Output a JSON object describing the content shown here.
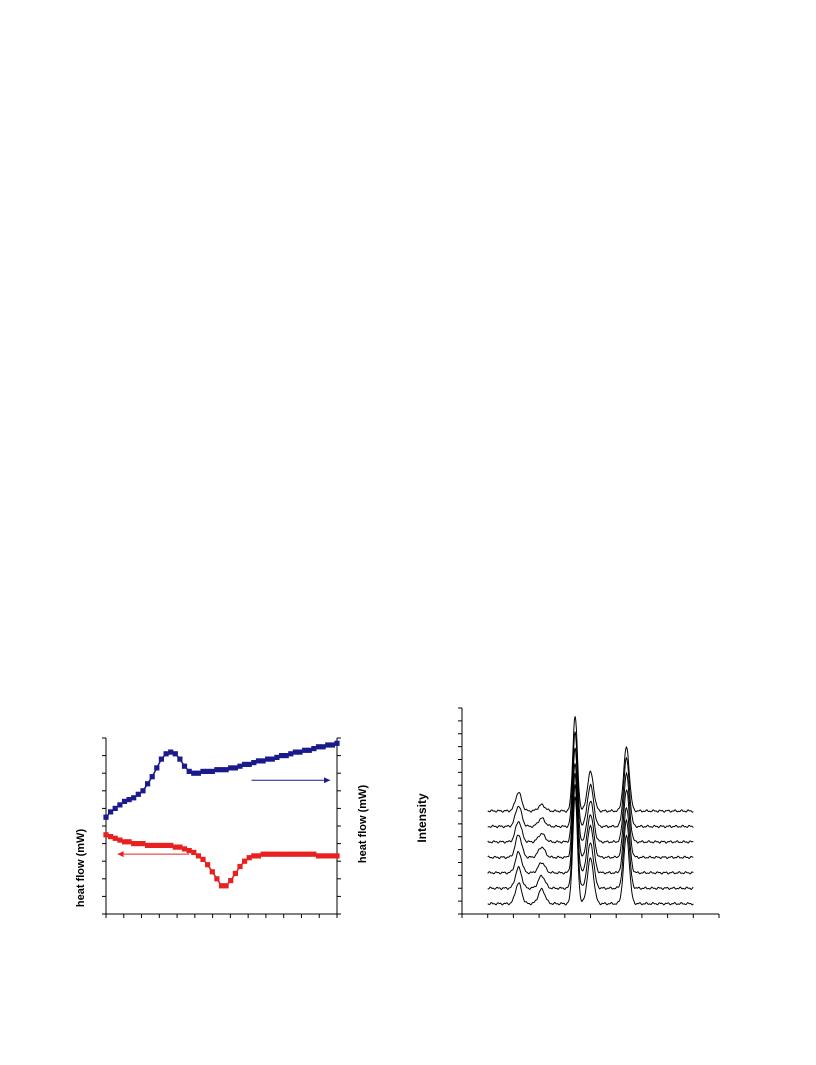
{
  "chart_data": [
    {
      "type": "scatter",
      "title": "",
      "xlabel": "",
      "ylabel_left": "heat flow (mW)",
      "ylabel_right": "heat flow (mW)",
      "xlim": [
        0,
        100
      ],
      "ylim": [
        0,
        100
      ],
      "grid": false,
      "legend": "none",
      "series": [
        {
          "color": "#1a1a8c",
          "marker": "square",
          "x": [
            0,
            2,
            4,
            6,
            8,
            10,
            12,
            14,
            16,
            18,
            20,
            22,
            24,
            26,
            28,
            30,
            32,
            34,
            36,
            38,
            40,
            42,
            44,
            46,
            48,
            50,
            52,
            54,
            56,
            58,
            60,
            62,
            64,
            66,
            68,
            70,
            72,
            74,
            76,
            78,
            80,
            82,
            84,
            86,
            88,
            90,
            92,
            94,
            96,
            98,
            100
          ],
          "y": [
            55,
            58,
            60,
            62,
            64,
            65,
            66,
            68,
            70,
            74,
            78,
            83,
            88,
            91,
            92,
            91,
            88,
            84,
            81,
            80,
            80,
            81,
            81,
            81,
            82,
            82,
            82,
            83,
            83,
            84,
            85,
            85,
            86,
            87,
            87,
            88,
            88,
            89,
            90,
            90,
            91,
            92,
            92,
            93,
            93,
            94,
            95,
            95,
            96,
            96,
            97
          ]
        },
        {
          "color": "#e8201f",
          "marker": "square",
          "x": [
            0,
            2,
            4,
            6,
            8,
            10,
            12,
            14,
            16,
            18,
            20,
            22,
            24,
            26,
            28,
            30,
            32,
            34,
            36,
            38,
            40,
            42,
            44,
            46,
            48,
            50,
            52,
            54,
            56,
            58,
            60,
            62,
            64,
            66,
            68,
            70,
            72,
            74,
            76,
            78,
            80,
            82,
            84,
            86,
            88,
            90,
            92,
            94,
            96,
            98,
            100
          ],
          "y": [
            45,
            44,
            43,
            42,
            41,
            41,
            40,
            40,
            40,
            39,
            39,
            39,
            39,
            39,
            39,
            38,
            38,
            37,
            36,
            35,
            33,
            31,
            28,
            24,
            20,
            16,
            16,
            19,
            23,
            27,
            30,
            32,
            33,
            33,
            34,
            34,
            34,
            34,
            34,
            34,
            34,
            34,
            34,
            34,
            34,
            34,
            33,
            33,
            33,
            33,
            33
          ]
        }
      ],
      "arrows": [
        {
          "direction": "right",
          "color": "#1a1a8c",
          "x_from": 63,
          "x_to": 97,
          "y": 76
        },
        {
          "direction": "left",
          "color": "#e8201f",
          "x_from": 36,
          "x_to": 5,
          "y": 34
        }
      ]
    },
    {
      "type": "line",
      "title": "",
      "xlabel": "",
      "ylabel": "Intensity",
      "xlim": [
        0,
        100
      ],
      "ylim": [
        0,
        100
      ],
      "grid": false,
      "legend": "none",
      "offset_step": 7.5,
      "baseline_start": 5,
      "x_start": 10,
      "x_end": 90,
      "peaks": [
        {
          "center": 22,
          "width": 1.2,
          "heights": [
            10,
            10,
            10,
            11,
            10,
            10,
            9
          ]
        },
        {
          "center": 31,
          "width": 1.3,
          "heights": [
            7,
            6,
            5,
            5,
            4,
            4,
            3
          ]
        },
        {
          "center": 44,
          "width": 0.9,
          "heights": [
            52,
            50,
            48,
            46,
            46,
            46,
            46
          ]
        },
        {
          "center": 50,
          "width": 1.2,
          "heights": [
            22,
            22,
            23,
            21,
            20,
            20,
            19
          ]
        },
        {
          "center": 64,
          "width": 1.1,
          "heights": [
            33,
            33,
            32,
            33,
            33,
            33,
            31
          ]
        }
      ],
      "trace_count": 7
    }
  ]
}
